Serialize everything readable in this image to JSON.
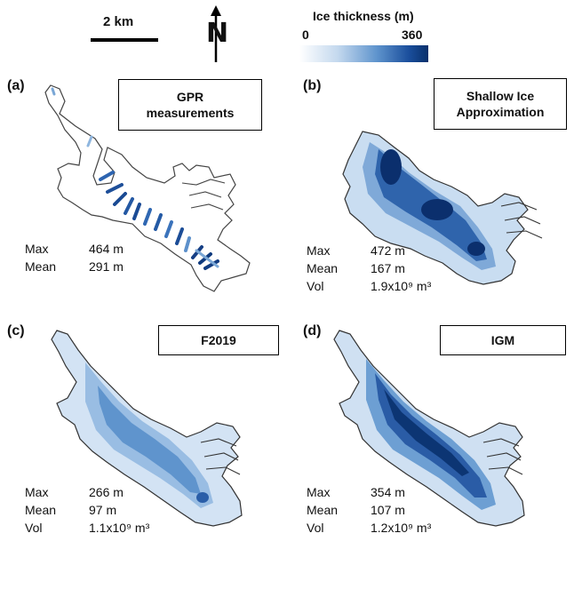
{
  "scale_bar": {
    "label": "2 km"
  },
  "north_arrow": {
    "letter": "N"
  },
  "legend": {
    "title": "Ice thickness (m)",
    "min": "0",
    "max": "360"
  },
  "panels": [
    {
      "letter": "(a)",
      "title_line1": "GPR",
      "title_line2": "measurements",
      "max_label": "Max",
      "max_value": "464 m",
      "mean_label": "Mean",
      "mean_value": "291 m",
      "vol_label": "",
      "vol_value": ""
    },
    {
      "letter": "(b)",
      "title_line1": "Shallow Ice",
      "title_line2": "Approximation",
      "max_label": "Max",
      "max_value": "472 m",
      "mean_label": "Mean",
      "mean_value": "167 m",
      "vol_label": "Vol",
      "vol_value": "1.9x10⁹ m³"
    },
    {
      "letter": "(c)",
      "title_line1": "F2019",
      "title_line2": "",
      "max_label": "Max",
      "max_value": "266 m",
      "mean_label": "Mean",
      "mean_value": "97 m",
      "vol_label": "Vol",
      "vol_value": "1.1x10⁹ m³"
    },
    {
      "letter": "(d)",
      "title_line1": "IGM",
      "title_line2": "",
      "max_label": "Max",
      "max_value": "354 m",
      "mean_label": "Mean",
      "mean_value": "107 m",
      "vol_label": "Vol",
      "vol_value": "1.2x10⁹ m³"
    }
  ],
  "colors": {
    "shallow": "#dbe8f6",
    "mid": "#9cc0e4",
    "deep": "#3e78bd",
    "deepest": "#0f3f86",
    "outline": "#333333"
  }
}
